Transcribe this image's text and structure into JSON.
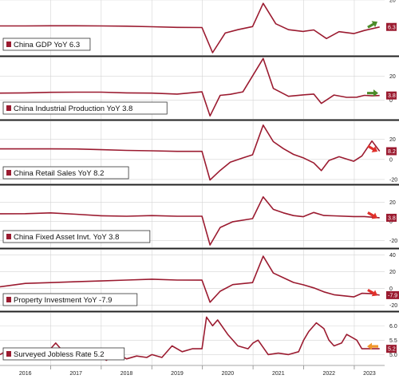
{
  "colors": {
    "series": "#9b1b30",
    "grid": "#d4d4d4",
    "separator": "#222222",
    "arrow_up": "#4c8c2a",
    "arrow_down": "#e0302a",
    "arrow_flat": "#f0962a"
  },
  "chart_data": {
    "type": "line",
    "x_axis": {
      "range": [
        2016.0,
        2023.6
      ],
      "ticks": [
        "2016",
        "2017",
        "2018",
        "2019",
        "2020",
        "2021",
        "2022",
        "2023"
      ]
    },
    "panels": [
      {
        "name": "China GDP YoY 6.3",
        "last_value": "6.3",
        "arrow": "up-right-green",
        "ylim": [
          -8,
          20
        ],
        "yticks": [
          "20"
        ],
        "points": [
          [
            2016.0,
            6.8
          ],
          [
            2016.5,
            6.8
          ],
          [
            2017.0,
            6.9
          ],
          [
            2017.5,
            6.9
          ],
          [
            2018.0,
            6.8
          ],
          [
            2018.5,
            6.7
          ],
          [
            2019.0,
            6.4
          ],
          [
            2019.5,
            6.1
          ],
          [
            2019.99,
            6.0
          ],
          [
            2020.2,
            -6.8
          ],
          [
            2020.45,
            3.2
          ],
          [
            2020.7,
            4.9
          ],
          [
            2020.99,
            6.5
          ],
          [
            2021.2,
            18.3
          ],
          [
            2021.45,
            7.9
          ],
          [
            2021.7,
            4.9
          ],
          [
            2021.99,
            4.0
          ],
          [
            2022.2,
            4.8
          ],
          [
            2022.45,
            0.4
          ],
          [
            2022.7,
            3.9
          ],
          [
            2022.99,
            2.9
          ],
          [
            2023.2,
            4.5
          ],
          [
            2023.5,
            6.3
          ]
        ]
      },
      {
        "name": "China Industrial Production YoY 3.8",
        "last_value": "3.8",
        "arrow": "right-green",
        "ylim": [
          -16,
          36
        ],
        "yticks": [
          "20",
          "0"
        ],
        "points": [
          [
            2016.0,
            5.8
          ],
          [
            2016.5,
            6.0
          ],
          [
            2017.0,
            6.5
          ],
          [
            2017.5,
            6.6
          ],
          [
            2018.0,
            6.6
          ],
          [
            2018.5,
            6.0
          ],
          [
            2019.0,
            5.8
          ],
          [
            2019.5,
            5.0
          ],
          [
            2019.99,
            6.9
          ],
          [
            2020.15,
            -13.5
          ],
          [
            2020.35,
            3.9
          ],
          [
            2020.55,
            4.8
          ],
          [
            2020.8,
            6.9
          ],
          [
            2021.2,
            35.1
          ],
          [
            2021.4,
            9.8
          ],
          [
            2021.7,
            3.1
          ],
          [
            2021.99,
            4.3
          ],
          [
            2022.2,
            5.0
          ],
          [
            2022.35,
            -2.9
          ],
          [
            2022.6,
            4.2
          ],
          [
            2022.85,
            2.2
          ],
          [
            2023.05,
            2.4
          ],
          [
            2023.2,
            3.9
          ],
          [
            2023.35,
            3.5
          ],
          [
            2023.5,
            3.8
          ]
        ]
      },
      {
        "name": "China Retail Sales YoY 8.2",
        "last_value": "8.2",
        "arrow": "down-right-red",
        "ylim": [
          -24,
          38
        ],
        "yticks": [
          "20",
          "0",
          "-20"
        ],
        "points": [
          [
            2016.0,
            10.5
          ],
          [
            2016.5,
            10.5
          ],
          [
            2017.0,
            10.5
          ],
          [
            2017.5,
            10.4
          ],
          [
            2018.0,
            9.7
          ],
          [
            2018.5,
            9.0
          ],
          [
            2019.0,
            8.6
          ],
          [
            2019.5,
            8.0
          ],
          [
            2019.99,
            8.0
          ],
          [
            2020.15,
            -20.5
          ],
          [
            2020.35,
            -11.0
          ],
          [
            2020.55,
            -2.8
          ],
          [
            2020.8,
            1.5
          ],
          [
            2020.99,
            4.6
          ],
          [
            2021.2,
            34.2
          ],
          [
            2021.4,
            17.7
          ],
          [
            2021.6,
            10.7
          ],
          [
            2021.8,
            5.0
          ],
          [
            2021.99,
            1.7
          ],
          [
            2022.2,
            -3.5
          ],
          [
            2022.35,
            -11.1
          ],
          [
            2022.5,
            -1.0
          ],
          [
            2022.7,
            2.7
          ],
          [
            2022.99,
            -1.8
          ],
          [
            2023.15,
            3.5
          ],
          [
            2023.35,
            18.4
          ],
          [
            2023.5,
            8.2
          ]
        ]
      },
      {
        "name": "China Fixed Asset Invt. YoY 3.8",
        "last_value": "3.8",
        "arrow": "down-right-red",
        "ylim": [
          -27,
          37
        ],
        "yticks": [
          "20",
          "0",
          "-20"
        ],
        "points": [
          [
            2016.0,
            8.0
          ],
          [
            2016.5,
            8.1
          ],
          [
            2017.0,
            8.9
          ],
          [
            2017.5,
            7.5
          ],
          [
            2018.0,
            5.9
          ],
          [
            2018.5,
            5.4
          ],
          [
            2019.0,
            6.1
          ],
          [
            2019.5,
            5.4
          ],
          [
            2019.99,
            5.4
          ],
          [
            2020.15,
            -24.5
          ],
          [
            2020.35,
            -6.3
          ],
          [
            2020.6,
            -0.3
          ],
          [
            2020.99,
            2.9
          ],
          [
            2021.2,
            25.6
          ],
          [
            2021.4,
            12.6
          ],
          [
            2021.6,
            8.9
          ],
          [
            2021.8,
            6.1
          ],
          [
            2021.99,
            4.9
          ],
          [
            2022.2,
            9.3
          ],
          [
            2022.4,
            6.2
          ],
          [
            2022.6,
            5.8
          ],
          [
            2022.99,
            5.1
          ],
          [
            2023.2,
            5.1
          ],
          [
            2023.5,
            3.8
          ]
        ]
      },
      {
        "name": "Property Investment YoY -7.9",
        "last_value": "-7.9",
        "arrow": "down-right-red",
        "ylim": [
          -26,
          46
        ],
        "yticks": [
          "40",
          "20",
          "0",
          "-20"
        ],
        "points": [
          [
            2016.0,
            2.0
          ],
          [
            2016.5,
            6.0
          ],
          [
            2017.0,
            7.0
          ],
          [
            2017.5,
            8.0
          ],
          [
            2018.0,
            9.0
          ],
          [
            2018.5,
            10.0
          ],
          [
            2019.0,
            11.0
          ],
          [
            2019.5,
            10.0
          ],
          [
            2019.99,
            9.9
          ],
          [
            2020.15,
            -16.3
          ],
          [
            2020.35,
            -3.3
          ],
          [
            2020.6,
            4.6
          ],
          [
            2020.99,
            7.0
          ],
          [
            2021.2,
            38.3
          ],
          [
            2021.4,
            18.3
          ],
          [
            2021.6,
            12.7
          ],
          [
            2021.8,
            7.2
          ],
          [
            2021.99,
            4.4
          ],
          [
            2022.2,
            0.7
          ],
          [
            2022.4,
            -4.0
          ],
          [
            2022.6,
            -7.4
          ],
          [
            2022.99,
            -10.0
          ],
          [
            2023.15,
            -5.7
          ],
          [
            2023.35,
            -6.2
          ],
          [
            2023.5,
            -7.9
          ]
        ]
      },
      {
        "name": "Surveyed Jobless Rate 5.2",
        "last_value": "5.2",
        "arrow": "left-orange",
        "ylim": [
          4.65,
          6.45
        ],
        "yticks": [
          "6.0",
          "5.5",
          "5.0"
        ],
        "points": [
          [
            2016.0,
            5.0
          ],
          [
            2016.1,
            5.1
          ],
          [
            2016.3,
            5.15
          ],
          [
            2016.5,
            5.2
          ],
          [
            2016.8,
            5.2
          ],
          [
            2017.0,
            5.2
          ],
          [
            2017.1,
            5.4
          ],
          [
            2017.2,
            5.2
          ],
          [
            2017.4,
            5.0
          ],
          [
            2017.6,
            4.95
          ],
          [
            2017.8,
            5.0
          ],
          [
            2018.0,
            5.0
          ],
          [
            2018.1,
            4.8
          ],
          [
            2018.3,
            5.05
          ],
          [
            2018.5,
            4.85
          ],
          [
            2018.7,
            4.95
          ],
          [
            2018.9,
            4.9
          ],
          [
            2019.0,
            5.0
          ],
          [
            2019.2,
            4.9
          ],
          [
            2019.4,
            5.3
          ],
          [
            2019.6,
            5.1
          ],
          [
            2019.8,
            5.2
          ],
          [
            2019.99,
            5.2
          ],
          [
            2020.08,
            6.3
          ],
          [
            2020.2,
            6.0
          ],
          [
            2020.3,
            6.2
          ],
          [
            2020.5,
            5.7
          ],
          [
            2020.7,
            5.3
          ],
          [
            2020.9,
            5.2
          ],
          [
            2021.0,
            5.4
          ],
          [
            2021.1,
            5.5
          ],
          [
            2021.3,
            5.0
          ],
          [
            2021.5,
            5.05
          ],
          [
            2021.7,
            5.0
          ],
          [
            2021.9,
            5.1
          ],
          [
            2022.0,
            5.5
          ],
          [
            2022.1,
            5.8
          ],
          [
            2022.25,
            6.1
          ],
          [
            2022.4,
            5.9
          ],
          [
            2022.5,
            5.5
          ],
          [
            2022.6,
            5.3
          ],
          [
            2022.75,
            5.4
          ],
          [
            2022.85,
            5.7
          ],
          [
            2022.95,
            5.6
          ],
          [
            2023.05,
            5.5
          ],
          [
            2023.15,
            5.2
          ],
          [
            2023.3,
            5.2
          ],
          [
            2023.5,
            5.2
          ]
        ]
      }
    ]
  }
}
